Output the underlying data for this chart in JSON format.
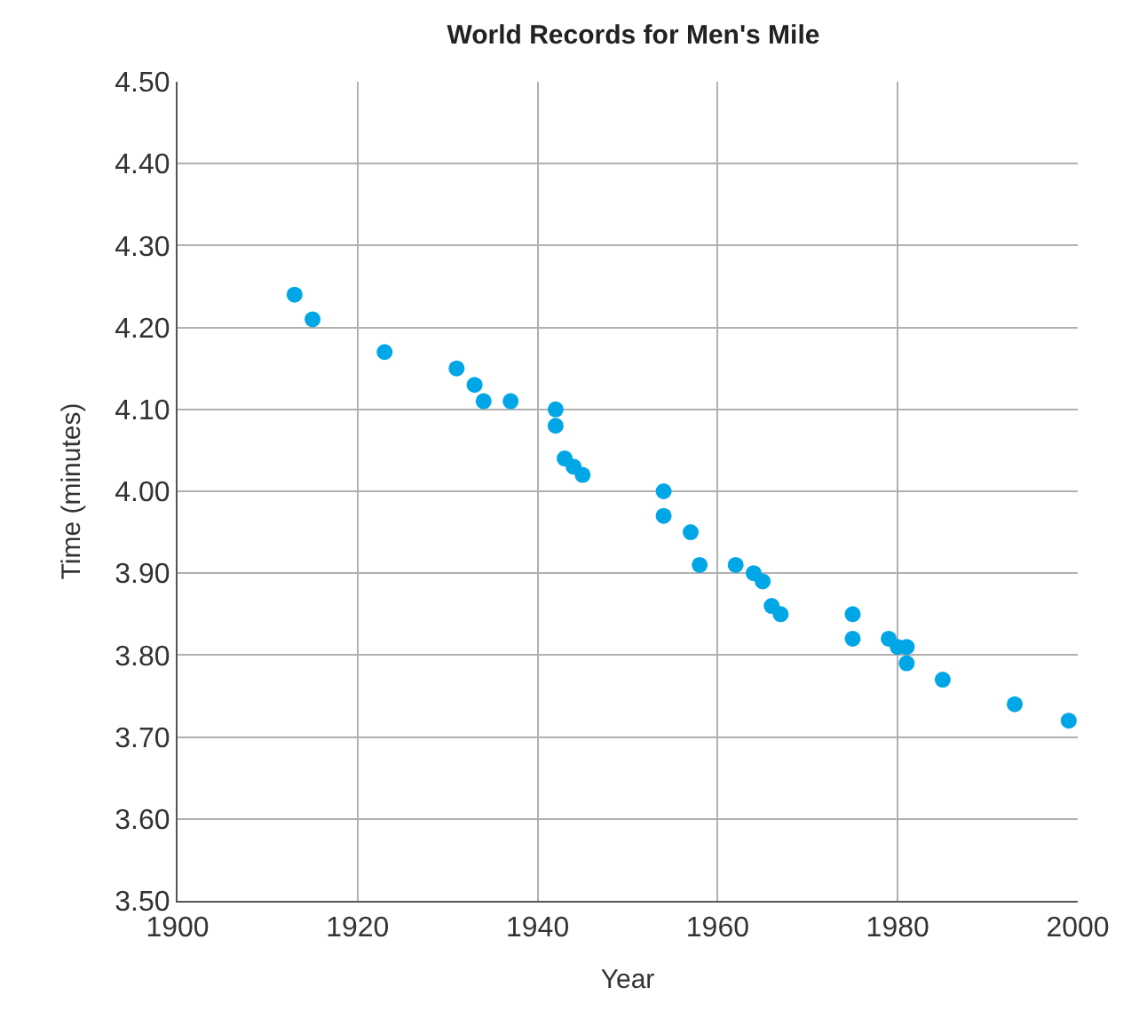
{
  "chart_data": {
    "type": "scatter",
    "title": "World Records for Men's Mile",
    "xlabel": "Year",
    "ylabel": "Time (minutes)",
    "x": [
      1913,
      1915,
      1923,
      1931,
      1933,
      1934,
      1937,
      1942,
      1942,
      1943,
      1944,
      1945,
      1954,
      1954,
      1957,
      1958,
      1962,
      1964,
      1965,
      1966,
      1967,
      1975,
      1975,
      1979,
      1980,
      1981,
      1981,
      1985,
      1993,
      1999
    ],
    "series": [
      {
        "color": "#00a6e6",
        "values": [
          4.24,
          4.21,
          4.17,
          4.15,
          4.13,
          4.11,
          4.11,
          4.1,
          4.08,
          4.04,
          4.03,
          4.02,
          4.0,
          3.97,
          3.95,
          3.91,
          3.91,
          3.9,
          3.89,
          3.86,
          3.85,
          3.85,
          3.82,
          3.82,
          3.81,
          3.81,
          3.79,
          3.77,
          3.74,
          3.72
        ]
      }
    ],
    "xlim": [
      1900,
      2000
    ],
    "xticks": [
      1900,
      1920,
      1940,
      1960,
      1980,
      2000
    ],
    "ylim": [
      3.5,
      4.5
    ],
    "yticks": [
      {
        "value": 3.5,
        "label": "3.50"
      },
      {
        "value": 3.6,
        "label": "3.60"
      },
      {
        "value": 3.7,
        "label": "3.70"
      },
      {
        "value": 3.8,
        "label": "3.80"
      },
      {
        "value": 3.9,
        "label": "3.90"
      },
      {
        "value": 4.0,
        "label": "4.00"
      },
      {
        "value": 4.1,
        "label": "4.10"
      },
      {
        "value": 4.2,
        "label": "4.20"
      },
      {
        "value": 4.3,
        "label": "4.30"
      },
      {
        "value": 4.4,
        "label": "4.40"
      },
      {
        "value": 4.5,
        "label": "4.50"
      }
    ],
    "grid": true,
    "marker": "circle"
  }
}
